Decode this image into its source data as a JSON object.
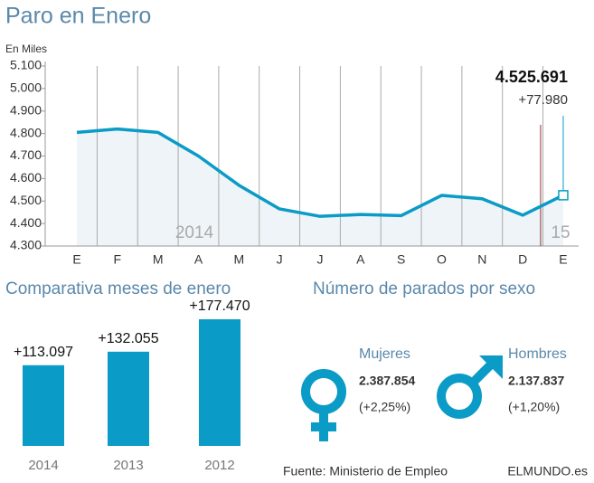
{
  "title": "Paro en Enero",
  "chart_data": [
    {
      "type": "line",
      "axis_label": "En Miles",
      "color": "#0a9bc6",
      "categories": [
        "E",
        "F",
        "M",
        "A",
        "M",
        "J",
        "J",
        "A",
        "S",
        "O",
        "N",
        "D",
        "E"
      ],
      "values": [
        4805,
        4820,
        4805,
        4700,
        4570,
        4465,
        4432,
        4440,
        4435,
        4525,
        4510,
        4437,
        4525.691
      ],
      "value_labels": [
        null,
        null,
        null,
        null,
        null,
        null,
        null,
        null,
        null,
        null,
        null,
        null,
        "4.525.691"
      ],
      "change_label": "+77.980",
      "year_labels": [
        "2014",
        "15"
      ],
      "ylim": [
        4300,
        5100
      ],
      "yticks": [
        {
          "value": 4300,
          "label": "4.300"
        },
        {
          "value": 4400,
          "label": "4.400"
        },
        {
          "value": 4500,
          "label": "4.500"
        },
        {
          "value": 4600,
          "label": "4.600"
        },
        {
          "value": 4700,
          "label": "4.700"
        },
        {
          "value": 4800,
          "label": "4.800"
        },
        {
          "value": 4900,
          "label": "4.900"
        },
        {
          "value": 5000,
          "label": "5.000"
        },
        {
          "value": 5100,
          "label": "5.100"
        }
      ]
    },
    {
      "type": "bar",
      "title": "Comparativa meses de enero",
      "color": "#0a9bc6",
      "categories": [
        "2014",
        "2013",
        "2012"
      ],
      "values": [
        113097,
        132055,
        177470
      ],
      "value_labels": [
        "+113.097",
        "+132.055",
        "+177.470"
      ]
    }
  ],
  "sex_panel": {
    "title": "Número de parados por sexo",
    "groups": [
      {
        "name": "Mujeres",
        "value": "2.387.854",
        "change": "(+2,25%)"
      },
      {
        "name": "Hombres",
        "value": "2.137.837",
        "change": "(+1,20%)"
      }
    ]
  },
  "source": "Fuente: Ministerio de Empleo",
  "brand": "ELMUNDO.es"
}
